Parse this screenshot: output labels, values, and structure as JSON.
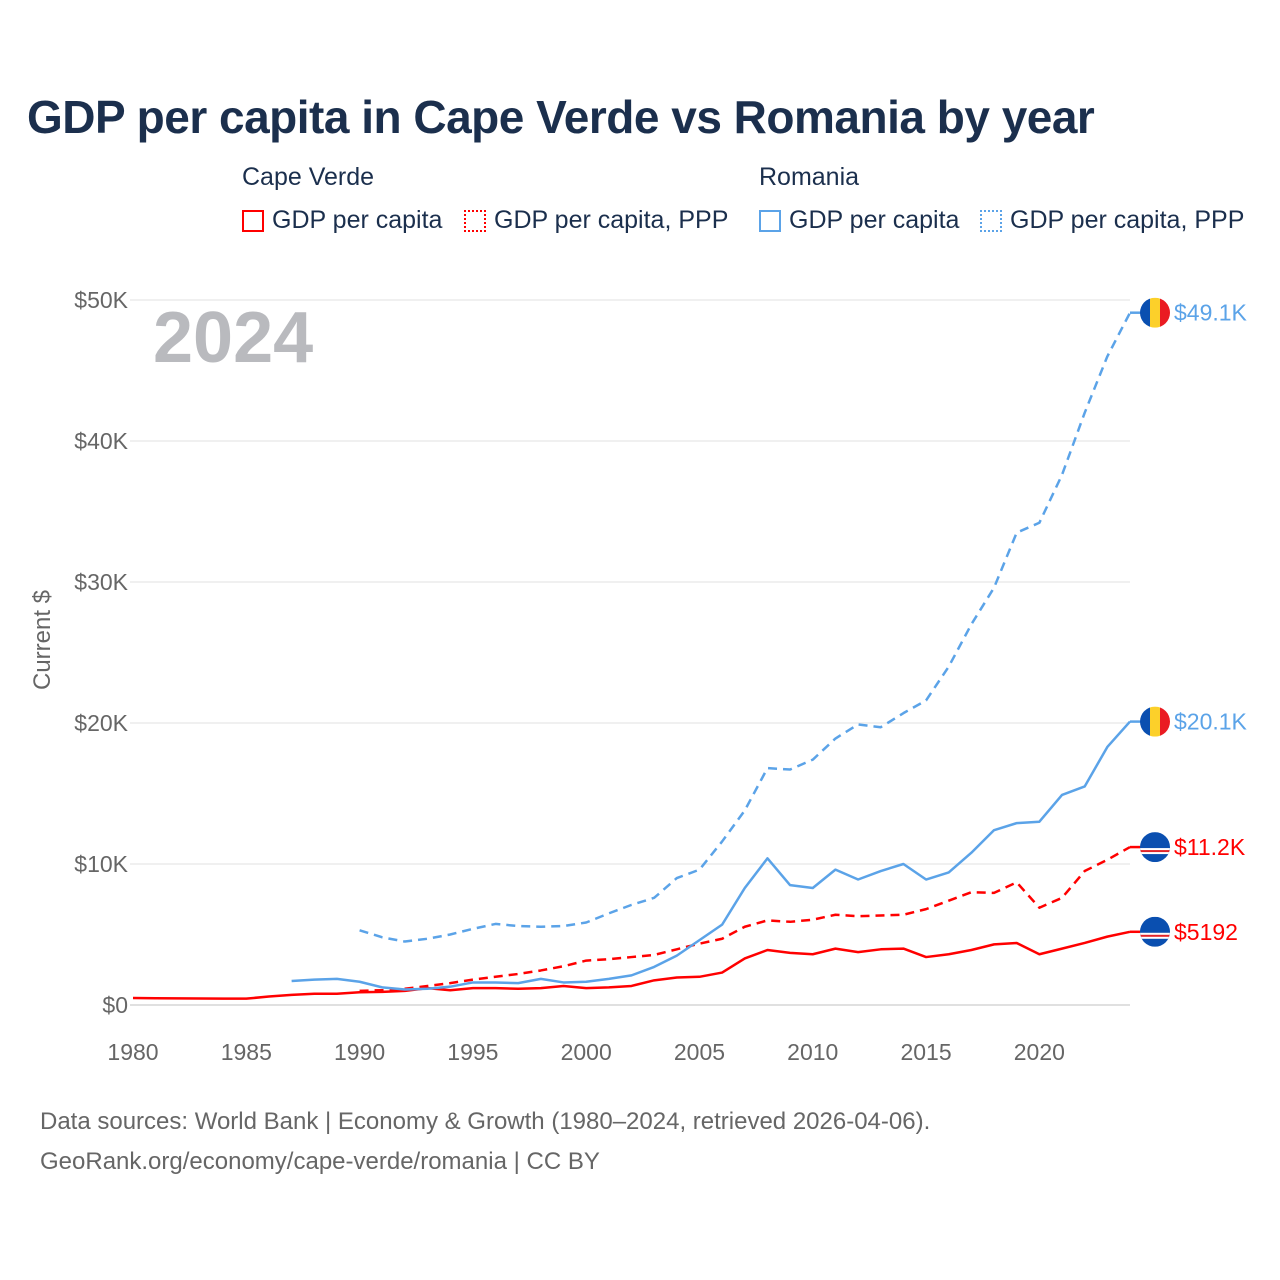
{
  "title": "GDP per capita in Cape Verde vs Romania by year",
  "legend": {
    "groups": [
      {
        "name": "Cape Verde",
        "items": [
          "GDP per capita",
          "GDP per capita, PPP"
        ],
        "color": "#ff0000"
      },
      {
        "name": "Romania",
        "items": [
          "GDP per capita",
          "GDP per capita, PPP"
        ],
        "color": "#5ba3e8"
      }
    ]
  },
  "year_label": "2024",
  "source_lines": [
    "Data sources: World Bank | Economy & Growth (1980–2024, retrieved 2026-04-06).",
    "GeoRank.org/economy/cape-verde/romania | CC BY"
  ],
  "chart_data": {
    "type": "line",
    "title": "GDP per capita in Cape Verde vs Romania by year",
    "xlabel": "",
    "ylabel": "Current $",
    "xlim": [
      1980,
      2024
    ],
    "ylim": [
      0,
      50000
    ],
    "x_ticks": [
      "1980",
      "1985",
      "1990",
      "1995",
      "2000",
      "2005",
      "2010",
      "2015",
      "2020"
    ],
    "y_ticks": [
      "$0",
      "$10K",
      "$20K",
      "$30K",
      "$40K",
      "$50K"
    ],
    "grid": true,
    "series": [
      {
        "name": "Cape Verde GDP per capita",
        "color": "#ff0000",
        "dash": false,
        "start": 1980,
        "end_label": "$5192",
        "values": [
          500,
          480,
          470,
          460,
          450,
          450,
          600,
          720,
          800,
          800,
          900,
          930,
          1000,
          1200,
          1050,
          1200,
          1200,
          1150,
          1200,
          1350,
          1200,
          1250,
          1350,
          1750,
          1950,
          2000,
          2300,
          3300,
          3900,
          3700,
          3600,
          4000,
          3750,
          3950,
          4000,
          3400,
          3600,
          3900,
          4300,
          4400,
          3600,
          4000,
          4400,
          4850,
          5192
        ]
      },
      {
        "name": "Cape Verde GDP per capita, PPP",
        "color": "#ff0000",
        "dash": true,
        "start": 1990,
        "end_label": "$11.2K",
        "values": [
          1000,
          1050,
          1150,
          1350,
          1550,
          1800,
          2000,
          2200,
          2450,
          2750,
          3150,
          3250,
          3400,
          3550,
          3950,
          4350,
          4700,
          5550,
          6000,
          5900,
          6050,
          6400,
          6300,
          6350,
          6400,
          6800,
          7400,
          8000,
          7950,
          8700,
          6900,
          7600,
          9500,
          10300,
          11200
        ]
      },
      {
        "name": "Romania GDP per capita",
        "color": "#5ba3e8",
        "dash": false,
        "start": 1987,
        "end_label": "$20.1K",
        "values": [
          1700,
          1800,
          1850,
          1650,
          1250,
          1100,
          1150,
          1300,
          1600,
          1600,
          1550,
          1850,
          1600,
          1650,
          1850,
          2100,
          2700,
          3500,
          4600,
          5700,
          8300,
          10400,
          8500,
          8300,
          9600,
          8900,
          9500,
          10000,
          8900,
          9400,
          10800,
          12400,
          12900,
          13000,
          14900,
          15500,
          18300,
          20100
        ]
      },
      {
        "name": "Romania GDP per capita, PPP",
        "color": "#5ba3e8",
        "dash": true,
        "start": 1990,
        "end_label": "$49.1K",
        "values": [
          5300,
          4800,
          4500,
          4700,
          5000,
          5400,
          5750,
          5600,
          5550,
          5600,
          5850,
          6500,
          7100,
          7600,
          9000,
          9600,
          11600,
          13800,
          16800,
          16700,
          17400,
          18900,
          19900,
          19700,
          20700,
          21600,
          24000,
          27000,
          29600,
          33500,
          34200,
          37600,
          42000,
          46000,
          49100
        ]
      }
    ]
  }
}
